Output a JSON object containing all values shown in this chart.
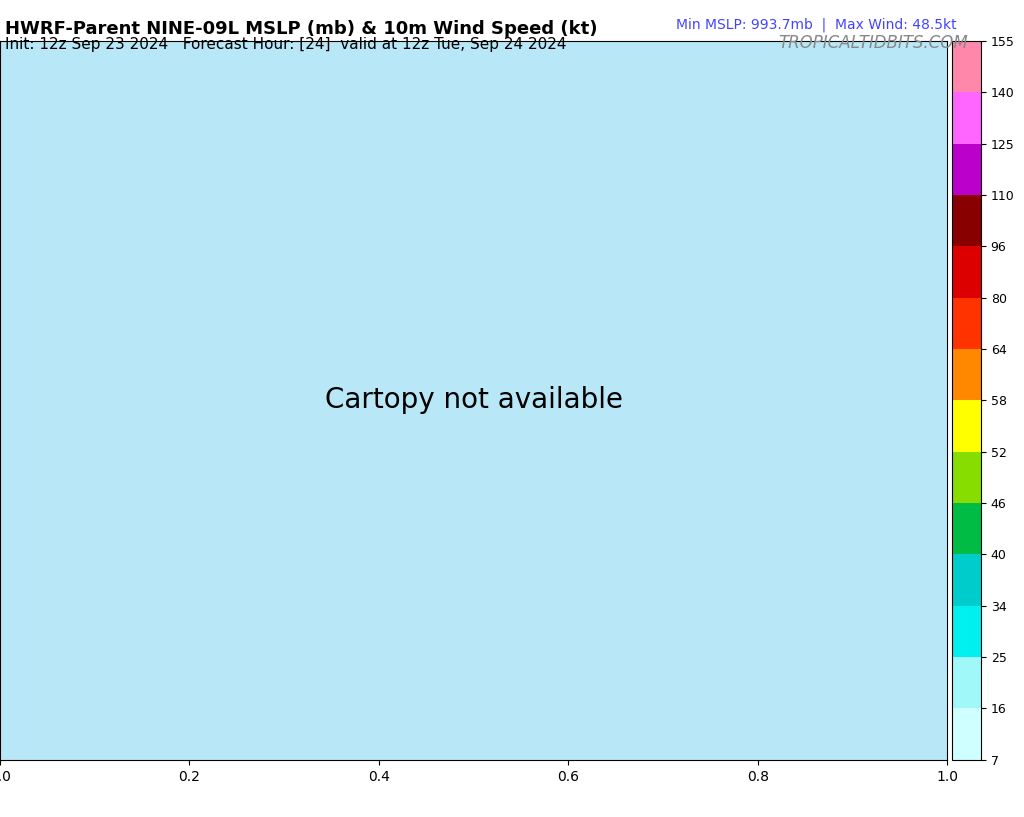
{
  "title_left": "HWRF-Parent NINE-09L MSLP (mb) & 10m Wind Speed (kt)",
  "title_right_top": "Min MSLP: 993.7mb  |  Max Wind: 48.5kt",
  "title_right_bot": "TROPICALTIDBITS.COM",
  "subtitle": "Init: 12z Sep 23 2024   Forecast Hour: [24]  valid at 12z Tue, Sep 24 2024",
  "colorbar_levels": [
    7,
    16,
    25,
    34,
    40,
    46,
    52,
    58,
    64,
    80,
    96,
    110,
    125,
    140,
    155
  ],
  "colorbar_colors": [
    "#00FFFF",
    "#00E5E5",
    "#00C8C8",
    "#00AAAA",
    "#00BB00",
    "#55DD00",
    "#FFFF00",
    "#FF8800",
    "#FF4400",
    "#FF0000",
    "#CC0000",
    "#CC00CC",
    "#9900CC",
    "#FF99CC",
    "#FF6699",
    "#FFCCCC"
  ],
  "map_extent": [
    -105,
    -62,
    7,
    37
  ],
  "background_color": "#FFFFFF",
  "ocean_color": "#A8D8EA",
  "land_color": "#F5F5DC",
  "title_fontsize": 13,
  "subtitle_fontsize": 11,
  "label_color_right": "#4444FF",
  "label_color_tidbits": "#888888"
}
